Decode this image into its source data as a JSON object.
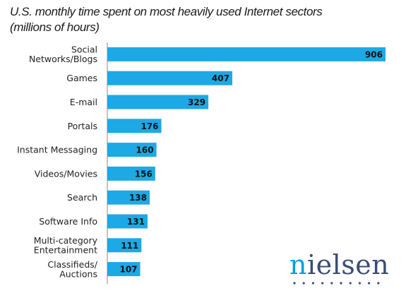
{
  "chart_data": {
    "type": "bar",
    "orientation": "horizontal",
    "title_lines": [
      "U.S. monthly time spent on most heavily used Internet sectors",
      "(millions of hours)"
    ],
    "categories": [
      [
        "Social",
        "Networks/Blogs"
      ],
      [
        "Games"
      ],
      [
        "E-mail"
      ],
      [
        "Portals"
      ],
      [
        "Instant Messaging"
      ],
      [
        "Videos/Movies"
      ],
      [
        "Search"
      ],
      [
        "Software Info"
      ],
      [
        "Multi-category",
        "Entertainment"
      ],
      [
        "Classifieds/",
        "Auctions"
      ]
    ],
    "values": [
      906,
      407,
      329,
      176,
      160,
      156,
      138,
      131,
      111,
      107
    ],
    "xlim": [
      0,
      906
    ],
    "bar_color": "#1ca9e6",
    "grid": false,
    "data_labels": true
  },
  "branding": {
    "logo_text_highlight": "n",
    "logo_text_rest": "ielsen",
    "logo_color": "#3a4e73",
    "logo_accent": "#00a0dc"
  }
}
